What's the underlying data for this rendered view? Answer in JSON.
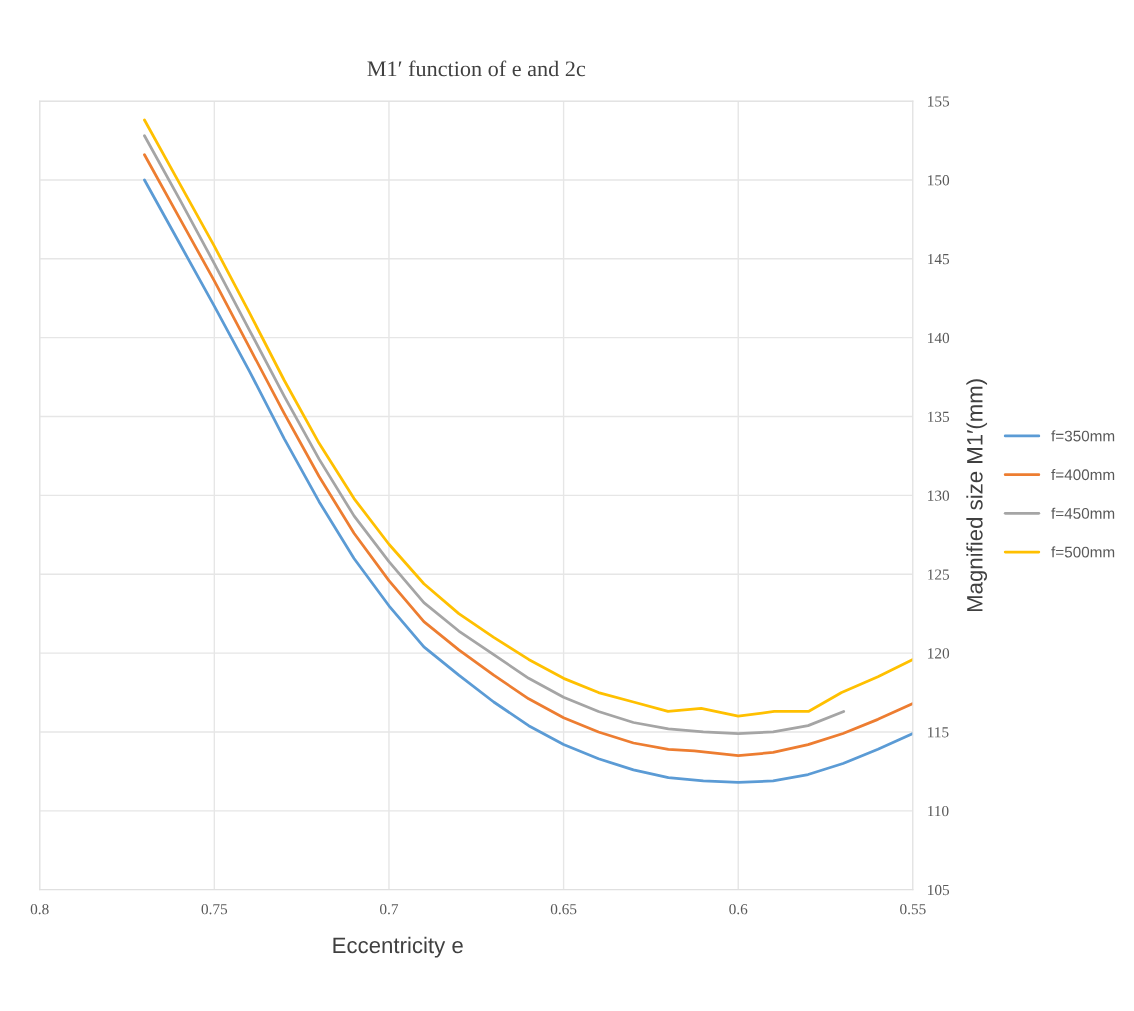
{
  "chart_data": {
    "type": "line",
    "title": "M1′ function of e and 2c",
    "xlabel": "Eccentricity e",
    "ylabel": "Magnified size M1′(mm)",
    "xlim": [
      0.8,
      0.55
    ],
    "xticks": [
      0.8,
      0.75,
      0.7,
      0.65,
      0.6,
      0.55
    ],
    "ylim": [
      105,
      155
    ],
    "yticks": [
      105,
      110,
      115,
      120,
      125,
      130,
      135,
      140,
      145,
      150,
      155
    ],
    "grid": true,
    "legend": "right",
    "marker": "none",
    "line_style": "solid",
    "series": [
      {
        "name": "f=350mm",
        "color": "#5b9bd5",
        "x": [
          0.77,
          0.76,
          0.75,
          0.74,
          0.73,
          0.72,
          0.71,
          0.7,
          0.69,
          0.68,
          0.67,
          0.66,
          0.65,
          0.64,
          0.63,
          0.62,
          0.61,
          0.6,
          0.59,
          0.58,
          0.57,
          0.56,
          0.55
        ],
        "values": [
          150.0,
          146.0,
          142.0,
          137.9,
          133.6,
          129.6,
          126.0,
          123.0,
          120.4,
          118.6,
          116.9,
          115.4,
          114.2,
          113.3,
          112.6,
          112.1,
          111.9,
          111.8,
          111.9,
          112.3,
          113.0,
          113.9,
          114.9
        ]
      },
      {
        "name": "f=400mm",
        "color": "#ed7d31",
        "x": [
          0.77,
          0.76,
          0.75,
          0.74,
          0.73,
          0.72,
          0.71,
          0.7,
          0.69,
          0.68,
          0.67,
          0.66,
          0.65,
          0.64,
          0.63,
          0.62,
          0.6126,
          0.6,
          0.59,
          0.58,
          0.57,
          0.56,
          0.55
        ],
        "values": [
          151.6,
          147.6,
          143.6,
          139.4,
          135.2,
          131.2,
          127.6,
          124.6,
          122.0,
          120.2,
          118.6,
          117.1,
          115.9,
          115.0,
          114.3,
          113.9,
          113.8,
          113.5,
          113.7,
          114.2,
          114.9,
          115.8,
          116.8
        ]
      },
      {
        "name": "f=450mm",
        "color": "#a5a5a5",
        "x": [
          0.77,
          0.76,
          0.75,
          0.74,
          0.73,
          0.72,
          0.71,
          0.7,
          0.69,
          0.68,
          0.67,
          0.66,
          0.65,
          0.64,
          0.63,
          0.62,
          0.61,
          0.6,
          0.59,
          0.58,
          0.5698
        ],
        "values": [
          152.8,
          148.8,
          144.7,
          140.5,
          136.3,
          132.3,
          128.7,
          125.8,
          123.2,
          121.4,
          119.9,
          118.4,
          117.2,
          116.3,
          115.6,
          115.2,
          115.0,
          114.9,
          115.0,
          115.4,
          116.3
        ]
      },
      {
        "name": "f=500mm",
        "color": "#ffc000",
        "x": [
          0.77,
          0.76,
          0.75,
          0.74,
          0.73,
          0.72,
          0.71,
          0.7,
          0.69,
          0.68,
          0.67,
          0.66,
          0.65,
          0.64,
          0.63,
          0.6201,
          0.6106,
          0.6,
          0.5897,
          0.5799,
          0.5704,
          0.56,
          0.55
        ],
        "values": [
          153.8,
          149.8,
          145.8,
          141.6,
          137.3,
          133.3,
          129.8,
          126.9,
          124.4,
          122.5,
          121.0,
          119.6,
          118.4,
          117.5,
          116.9,
          116.3,
          116.5,
          116.0,
          116.3,
          116.3,
          117.5,
          118.5,
          119.6
        ]
      }
    ]
  }
}
